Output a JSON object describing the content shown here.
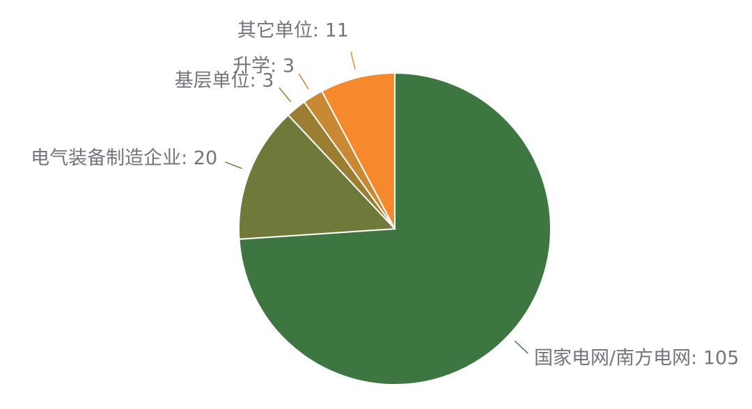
{
  "chart_data": {
    "type": "pie",
    "categories": [
      "国家电网/南方电网",
      "电气装备制造企业",
      "基层单位",
      "升学",
      "其它单位"
    ],
    "values": [
      105,
      20,
      3,
      3,
      11
    ],
    "value_labels": [
      "国家电网/南方电网: 105",
      "电气装备制造企业: 20",
      "基层单位: 3",
      "升学: 3",
      "其它单位: 11"
    ],
    "colors": [
      "#3d7641",
      "#6e793a",
      "#9b7e31",
      "#c98833",
      "#f5892b"
    ]
  }
}
